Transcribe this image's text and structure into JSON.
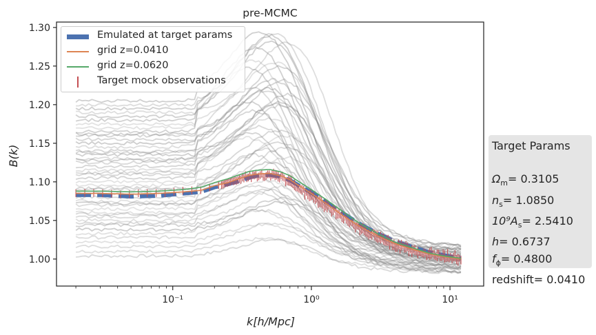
{
  "chart_data": {
    "type": "line",
    "title": "pre-MCMC",
    "xlabel": "k[h/Mpc]",
    "ylabel": "B(k)",
    "xscale": "log",
    "xlim": [
      0.0145,
      17.5
    ],
    "ylim": [
      0.965,
      1.307
    ],
    "xticks": [
      {
        "value": 0.1,
        "label": "10⁻¹"
      },
      {
        "value": 1,
        "label": "10⁰"
      },
      {
        "value": 10,
        "label": "10¹"
      }
    ],
    "yticks": [
      1.0,
      1.05,
      1.1,
      1.15,
      1.2,
      1.25,
      1.3
    ],
    "ytick_labels": [
      "1.00",
      "1.05",
      "1.10",
      "1.15",
      "1.20",
      "1.25",
      "1.30"
    ],
    "grid": false,
    "legend_position": "top-left",
    "legend": [
      {
        "label": "Emulated at target params",
        "color": "#4c72b0",
        "style": "thick-dashed"
      },
      {
        "label": "grid z=0.0410",
        "color": "#dd8452",
        "style": "line"
      },
      {
        "label": "grid z=0.0620",
        "color": "#55a868",
        "style": "line"
      },
      {
        "label": "Target mock observations",
        "color": "#c44e52",
        "style": "errorbar"
      }
    ],
    "x": [
      0.02,
      0.03,
      0.05,
      0.08,
      0.12,
      0.16,
      0.2,
      0.25,
      0.3,
      0.35,
      0.4,
      0.5,
      0.6,
      0.7,
      0.8,
      1.0,
      1.3,
      1.7,
      2.2,
      3.0,
      4.0,
      5.5,
      7.0,
      9.0,
      12.0
    ],
    "series": [
      {
        "name": "Emulated at target params",
        "color": "#4c72b0",
        "values": [
          1.083,
          1.083,
          1.081,
          1.082,
          1.085,
          1.087,
          1.093,
          1.097,
          1.101,
          1.105,
          1.108,
          1.109,
          1.107,
          1.102,
          1.096,
          1.086,
          1.073,
          1.059,
          1.046,
          1.033,
          1.023,
          1.015,
          1.009,
          1.005,
          1.001
        ]
      },
      {
        "name": "grid z=0.0410",
        "color": "#dd8452",
        "values": [
          1.085,
          1.085,
          1.084,
          1.085,
          1.087,
          1.089,
          1.095,
          1.099,
          1.104,
          1.108,
          1.11,
          1.111,
          1.108,
          1.103,
          1.096,
          1.085,
          1.071,
          1.056,
          1.043,
          1.03,
          1.02,
          1.012,
          1.007,
          1.003,
          1.0
        ]
      },
      {
        "name": "grid z=0.0620",
        "color": "#55a868",
        "values": [
          1.088,
          1.088,
          1.087,
          1.088,
          1.09,
          1.093,
          1.099,
          1.104,
          1.109,
          1.113,
          1.115,
          1.116,
          1.113,
          1.108,
          1.101,
          1.09,
          1.076,
          1.061,
          1.047,
          1.033,
          1.022,
          1.014,
          1.008,
          1.004,
          1.001
        ]
      },
      {
        "name": "Target mock observations",
        "color": "#c44e52",
        "values": [
          1.085,
          1.086,
          1.084,
          1.085,
          1.088,
          1.089,
          1.094,
          1.099,
          1.103,
          1.107,
          1.108,
          1.109,
          1.106,
          1.1,
          1.093,
          1.082,
          1.068,
          1.054,
          1.04,
          1.028,
          1.019,
          1.011,
          1.006,
          1.003,
          1.001
        ]
      }
    ],
    "background_curves": {
      "color": "#888888",
      "count": 48,
      "low_k_values": [
        1.004,
        1.01,
        1.016,
        1.022,
        1.028,
        1.033,
        1.038,
        1.044,
        1.05,
        1.055,
        1.06,
        1.065,
        1.07,
        1.075,
        1.08,
        1.085,
        1.09,
        1.095,
        1.1,
        1.105,
        1.11,
        1.115,
        1.12,
        1.125,
        1.13,
        1.135,
        1.14,
        1.145,
        1.15,
        1.155,
        1.16,
        1.165,
        1.17,
        1.175,
        1.18,
        1.185,
        1.19,
        1.195,
        1.2,
        1.205,
        1.092,
        1.058,
        1.112,
        1.138,
        1.162,
        1.072,
        1.046,
        1.128
      ],
      "end_values_at_k12": [
        0.983,
        0.988,
        0.992,
        0.996,
        1.0,
        1.004,
        1.008,
        1.012,
        1.016
      ]
    }
  },
  "param_box": {
    "title": "Target Params",
    "lines": [
      {
        "symbol": "Ω",
        "sub": "m",
        "value": "= 0.3105"
      },
      {
        "symbol": "n",
        "sub": "s",
        "value": "= 1.0850"
      },
      {
        "symbol": "10⁹A",
        "sub": "s",
        "value": "= 2.5410"
      },
      {
        "symbol": "h",
        "sub": "",
        "value": "= 0.6737"
      },
      {
        "symbol": "f",
        "sub": "ϕ",
        "value": "= 0.4800"
      },
      {
        "symbol": "redshift",
        "sub": "",
        "value": "= 0.0410"
      }
    ]
  }
}
